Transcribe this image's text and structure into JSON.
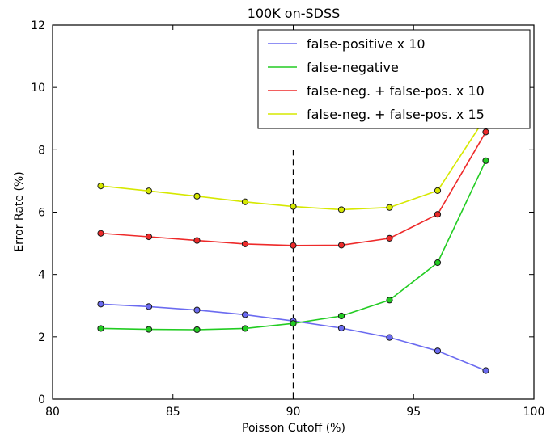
{
  "chart_data": {
    "type": "line",
    "title": "100K on-SDSS",
    "xlabel": "Poisson Cutoff (%)",
    "ylabel": "Error Rate (%)",
    "xlim": [
      80,
      100
    ],
    "ylim": [
      0,
      12
    ],
    "xticks": [
      80,
      85,
      90,
      95,
      100
    ],
    "yticks": [
      0,
      2,
      4,
      6,
      8,
      10,
      12
    ],
    "grid": false,
    "legend_position": "top-right",
    "x": [
      82,
      84,
      86,
      88,
      90,
      92,
      94,
      96,
      98
    ],
    "series": [
      {
        "name": "false-positive x 10",
        "color": "#6b6bf0",
        "values": [
          3.05,
          2.97,
          2.86,
          2.71,
          2.51,
          2.28,
          1.98,
          1.55,
          0.92
        ]
      },
      {
        "name": "false-negative",
        "color": "#22cc22",
        "values": [
          2.27,
          2.24,
          2.23,
          2.27,
          2.43,
          2.67,
          3.18,
          4.38,
          7.65
        ]
      },
      {
        "name": "false-neg. + false-pos. x 10",
        "color": "#ee2a2a",
        "values": [
          5.32,
          5.21,
          5.09,
          4.98,
          4.93,
          4.94,
          5.16,
          5.93,
          8.57
        ]
      },
      {
        "name": "false-neg. + false-pos. x 15",
        "color": "#d6e800",
        "values": [
          6.84,
          6.68,
          6.51,
          6.33,
          6.18,
          6.08,
          6.15,
          6.69,
          9.05
        ]
      }
    ],
    "annotations": [
      {
        "type": "vertical-dashed-line",
        "x": 90,
        "y_range": [
          0,
          8
        ]
      }
    ]
  }
}
